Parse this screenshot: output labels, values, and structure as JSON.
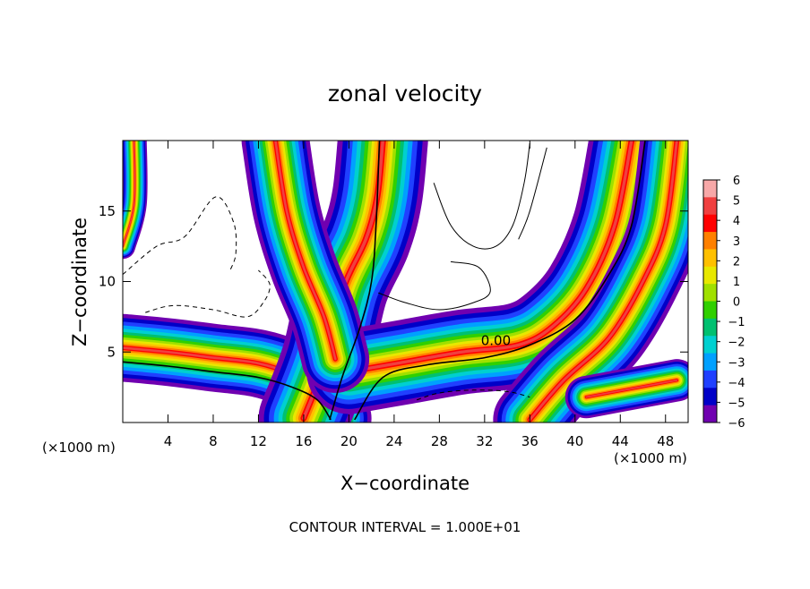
{
  "chart_data": {
    "type": "heatmap",
    "title": "zonal velocity",
    "xlabel": "X−coordinate",
    "ylabel": "Z−coordinate",
    "xunit_left": "(×1000 m)",
    "xunit_right": "(×1000 m)",
    "xlim": [
      0,
      50
    ],
    "ylim": [
      0,
      20
    ],
    "xticks": [
      4,
      8,
      12,
      16,
      20,
      24,
      28,
      32,
      36,
      40,
      44,
      48
    ],
    "yticks": [
      5,
      10,
      15
    ],
    "footer": "CONTOUR INTERVAL = 1.000E+01",
    "contour_label": "0.00",
    "contour_label_at": [
      33,
      5.5
    ],
    "colorbar": {
      "min": -6,
      "max": 6,
      "ticks": [
        "6",
        "5",
        "4",
        "3",
        "2",
        "1",
        "0",
        "−1",
        "−2",
        "−3",
        "−4",
        "−5",
        "−6"
      ],
      "colors": [
        "#f7a8a8",
        "#f04040",
        "#ff0000",
        "#ff8000",
        "#ffc000",
        "#e8e800",
        "#a0e000",
        "#30d000",
        "#00c070",
        "#00d0d0",
        "#00a0ff",
        "#2040ff",
        "#0000c8",
        "#7000b0"
      ]
    },
    "bands": [
      {
        "name": "low-level-shear-layer",
        "points": [
          [
            0,
            5.3
          ],
          [
            4,
            5.0
          ],
          [
            8,
            4.6
          ],
          [
            12,
            4.2
          ],
          [
            15,
            3.4
          ],
          [
            17.5,
            2.2
          ],
          [
            19,
            0.3
          ]
        ],
        "width": 2.4
      },
      {
        "name": "mid-rising-jet",
        "points": [
          [
            16,
            0.3
          ],
          [
            18,
            4.5
          ],
          [
            19.5,
            9.5
          ],
          [
            21.5,
            13
          ],
          [
            22.5,
            16
          ],
          [
            23,
            20
          ]
        ],
        "width": 3.2
      },
      {
        "name": "low-level-outflow",
        "points": [
          [
            20,
            3.6
          ],
          [
            25,
            4.3
          ],
          [
            30,
            5.0
          ],
          [
            35,
            5.5
          ],
          [
            38,
            6.8
          ],
          [
            41,
            9.5
          ],
          [
            43.5,
            14
          ],
          [
            45,
            20
          ]
        ],
        "width": 3.0
      },
      {
        "name": "lower-right-column",
        "points": [
          [
            36,
            0.2
          ],
          [
            39,
            3.0
          ],
          [
            43,
            6.0
          ],
          [
            46,
            10
          ],
          [
            48,
            14
          ],
          [
            49,
            20
          ]
        ],
        "width": 2.6
      },
      {
        "name": "upper-left-plume",
        "points": [
          [
            13.5,
            20
          ],
          [
            14.5,
            15
          ],
          [
            16,
            11
          ],
          [
            17.8,
            7.5
          ],
          [
            18.8,
            4.5
          ]
        ],
        "width": 2.4
      },
      {
        "name": "left-edge-strip",
        "points": [
          [
            0,
            12.5
          ],
          [
            1,
            15.5
          ],
          [
            1,
            20
          ]
        ],
        "width": 0.9
      },
      {
        "name": "lower-right-patch",
        "points": [
          [
            41,
            1.8
          ],
          [
            45,
            2.4
          ],
          [
            49,
            3.0
          ]
        ],
        "width": 1.5
      }
    ],
    "contours_solid": [
      [
        [
          0,
          4.3
        ],
        [
          4,
          4.0
        ],
        [
          8,
          3.6
        ],
        [
          12,
          3.2
        ],
        [
          15,
          2.5
        ],
        [
          17.2,
          1.6
        ],
        [
          18.4,
          0.2
        ]
      ],
      [
        [
          18.3,
          0.2
        ],
        [
          19.4,
          3.2
        ],
        [
          21,
          6.8
        ],
        [
          22,
          10
        ],
        [
          22.4,
          14
        ],
        [
          22.7,
          20
        ]
      ],
      [
        [
          20.5,
          0.2
        ],
        [
          23,
          3.2
        ],
        [
          27,
          4.1
        ],
        [
          32,
          4.6
        ],
        [
          36,
          5.5
        ],
        [
          40,
          7.3
        ],
        [
          43,
          10.5
        ],
        [
          45,
          14
        ],
        [
          46.2,
          20
        ]
      ],
      [
        [
          35,
          13
        ],
        [
          36,
          15
        ],
        [
          37.5,
          19.5
        ]
      ],
      [
        [
          27.5,
          17
        ],
        [
          29,
          14
        ],
        [
          31,
          12.5
        ],
        [
          33,
          12.5
        ],
        [
          34.5,
          14
        ],
        [
          35.5,
          17
        ],
        [
          36,
          19.8
        ]
      ],
      [
        [
          22.6,
          9.2
        ],
        [
          25,
          8.5
        ],
        [
          28,
          8.0
        ],
        [
          31,
          8.5
        ],
        [
          32.5,
          9.3
        ],
        [
          31.5,
          11
        ],
        [
          29,
          11.4
        ]
      ]
    ],
    "contours_dashed": [
      [
        [
          0,
          10.5
        ],
        [
          3,
          12.5
        ],
        [
          5.5,
          13.2
        ],
        [
          8.2,
          16
        ],
        [
          9.8,
          14.2
        ],
        [
          10,
          12
        ],
        [
          9.5,
          10.8
        ]
      ],
      [
        [
          2,
          7.8
        ],
        [
          4.5,
          8.3
        ],
        [
          8,
          8.0
        ],
        [
          11,
          7.5
        ],
        [
          12.5,
          8.6
        ],
        [
          13,
          9.8
        ],
        [
          12,
          10.8
        ]
      ],
      [
        [
          26,
          1.6
        ],
        [
          28,
          2.1
        ],
        [
          31,
          2.3
        ],
        [
          34,
          2.2
        ],
        [
          36,
          1.8
        ]
      ]
    ]
  }
}
